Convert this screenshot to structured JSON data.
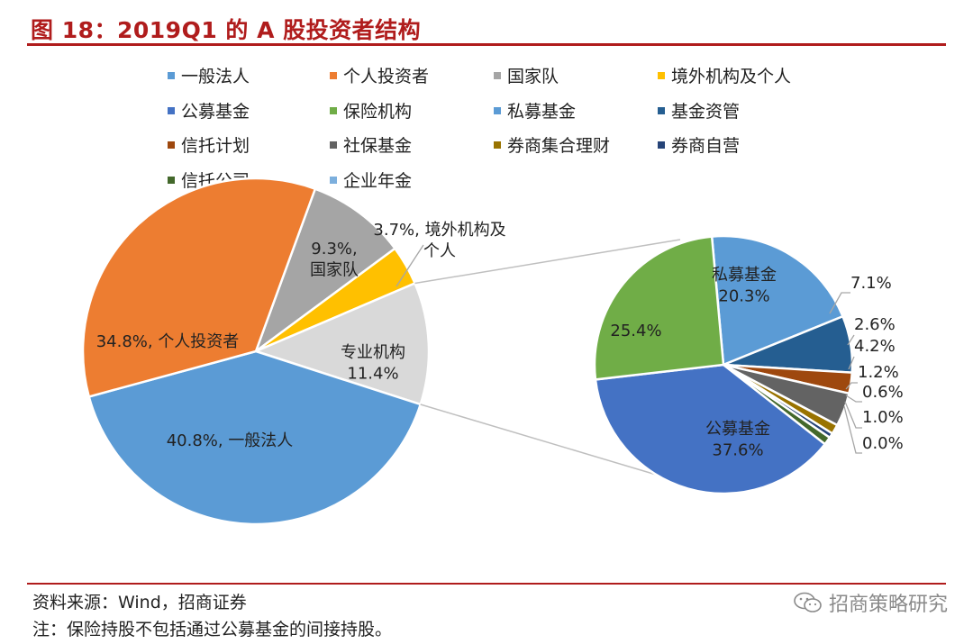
{
  "header": {
    "title": "图 18：2019Q1 的 A 股投资者结构"
  },
  "footer": {
    "source": "资料来源：Wind，招商证券",
    "note": "注：保险持股不包括通过公募基金的间接持股。",
    "watermark": "招商策略研究"
  },
  "legend": [
    {
      "label": "一般法人",
      "color": "#5b9bd5"
    },
    {
      "label": "个人投资者",
      "color": "#ed7d31"
    },
    {
      "label": "国家队",
      "color": "#a5a5a5"
    },
    {
      "label": "境外机构及个人",
      "color": "#ffc000"
    },
    {
      "label": "公募基金",
      "color": "#4472c4"
    },
    {
      "label": "保险机构",
      "color": "#70ad47"
    },
    {
      "label": "私募基金",
      "color": "#5b9bd5"
    },
    {
      "label": "基金资管",
      "color": "#255e91"
    },
    {
      "label": "信托计划",
      "color": "#9e480e"
    },
    {
      "label": "社保基金",
      "color": "#636363"
    },
    {
      "label": "券商集合理财",
      "color": "#997300"
    },
    {
      "label": "券商自营",
      "color": "#264478"
    },
    {
      "label": "信托公司",
      "color": "#43682b"
    },
    {
      "label": "企业年金",
      "color": "#7cafdd"
    }
  ],
  "chart_data": [
    {
      "type": "pie",
      "name": "main",
      "slices": [
        {
          "label": "国家队",
          "value": 9.3,
          "color": "#a5a5a5",
          "text": "9.3%,\n国家队"
        },
        {
          "label": "境外机构及个人",
          "value": 3.7,
          "color": "#ffc000",
          "text": "3.7%, 境外机构及\n个人"
        },
        {
          "label": "专业机构",
          "value": 11.4,
          "color": "#d9d9d9",
          "text": "专业机构\n11.4%"
        },
        {
          "label": "一般法人",
          "value": 40.8,
          "color": "#5b9bd5",
          "text": "40.8%, 一般法人"
        },
        {
          "label": "个人投资者",
          "value": 34.8,
          "color": "#ed7d31",
          "text": "34.8%, 个人投资者"
        }
      ]
    },
    {
      "type": "pie",
      "name": "professional-institutions-breakdown",
      "slices": [
        {
          "label": "私募基金",
          "value": 20.3,
          "color": "#5b9bd5",
          "text": "私募基金\n20.3%"
        },
        {
          "label": "基金资管",
          "value": 7.1,
          "color": "#255e91",
          "text": "7.1%"
        },
        {
          "label": "信托计划",
          "value": 2.6,
          "color": "#9e480e",
          "text": "2.6%"
        },
        {
          "label": "社保基金",
          "value": 4.2,
          "color": "#636363",
          "text": "4.2%"
        },
        {
          "label": "券商集合理财",
          "value": 1.2,
          "color": "#997300",
          "text": "1.2%"
        },
        {
          "label": "券商自营",
          "value": 0.6,
          "color": "#264478",
          "text": "0.6%"
        },
        {
          "label": "信托公司",
          "value": 1.0,
          "color": "#43682b",
          "text": "1.0%"
        },
        {
          "label": "企业年金",
          "value": 0.0,
          "color": "#7cafdd",
          "text": "0.0%"
        },
        {
          "label": "公募基金",
          "value": 37.6,
          "color": "#4472c4",
          "text": "公募基金\n37.6%"
        },
        {
          "label": "保险机构",
          "value": 25.4,
          "color": "#70ad47",
          "text": "25.4%"
        }
      ]
    }
  ]
}
